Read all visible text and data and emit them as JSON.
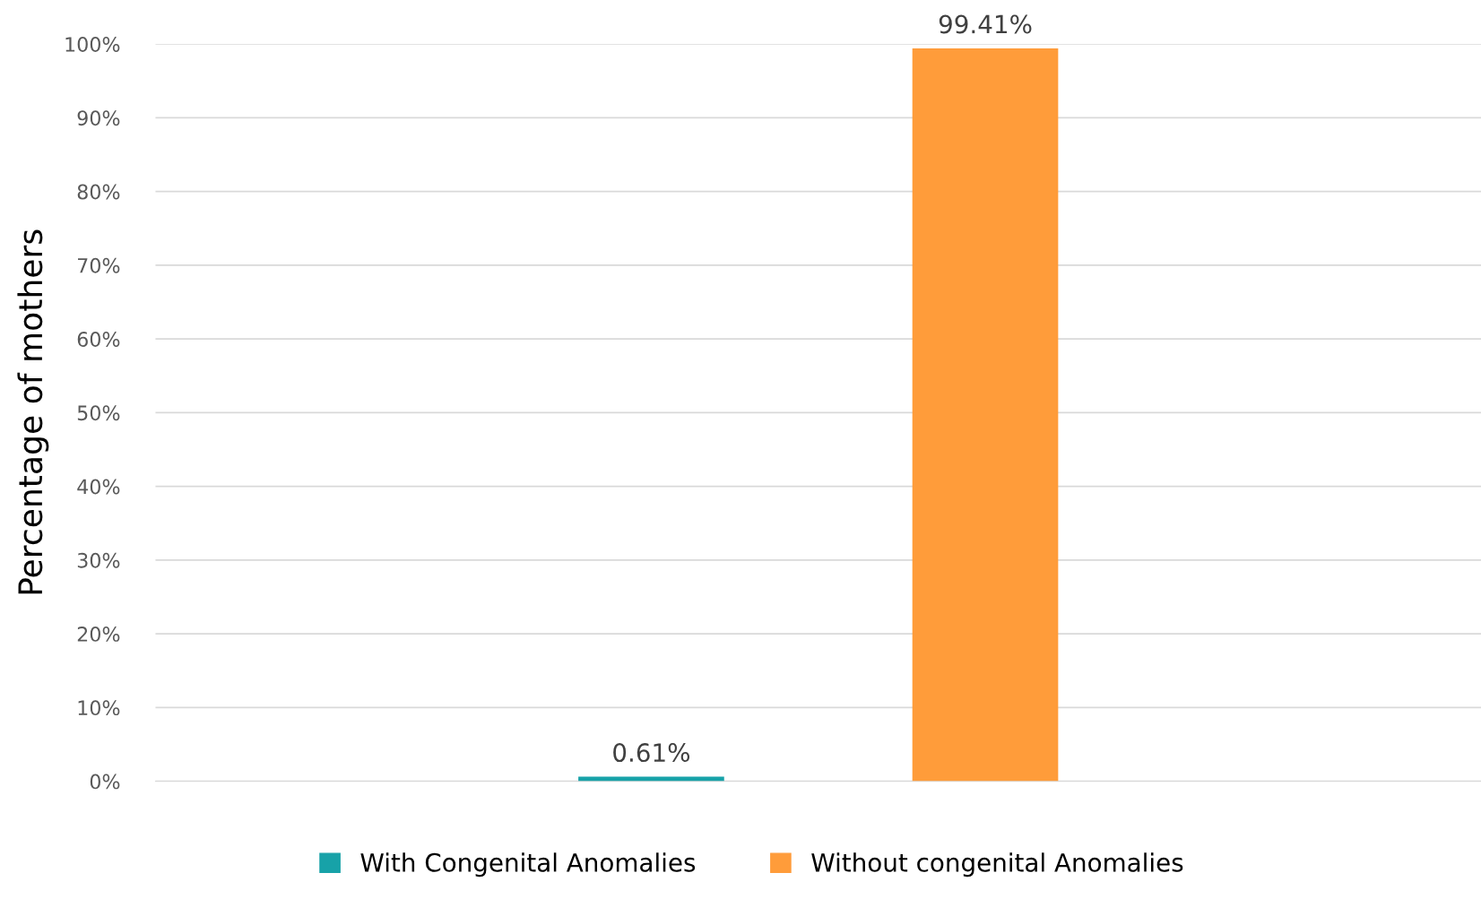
{
  "chart_data": {
    "type": "bar",
    "ylabel": "Percentage of mothers",
    "categories": [
      null
    ],
    "series": [
      {
        "name": "With Congenital Anomalies",
        "color": "#17a2a8",
        "values": [
          0.61
        ],
        "value_labels": [
          "0.61%"
        ]
      },
      {
        "name": "Without congenital Anomalies",
        "color": "#ff9c3a",
        "values": [
          99.41
        ],
        "value_labels": [
          "99.41%"
        ]
      }
    ],
    "ylim": [
      0,
      100
    ],
    "yticks": [
      {
        "value": 0,
        "label": "0%"
      },
      {
        "value": 10,
        "label": "10%"
      },
      {
        "value": 20,
        "label": "20%"
      },
      {
        "value": 30,
        "label": "30%"
      },
      {
        "value": 40,
        "label": "40%"
      },
      {
        "value": 50,
        "label": "50%"
      },
      {
        "value": 60,
        "label": "60%"
      },
      {
        "value": 70,
        "label": "70%"
      },
      {
        "value": 80,
        "label": "80%"
      },
      {
        "value": 90,
        "label": "90%"
      },
      {
        "value": 100,
        "label": "100%"
      }
    ],
    "grid": "y",
    "legend": "bottom"
  }
}
